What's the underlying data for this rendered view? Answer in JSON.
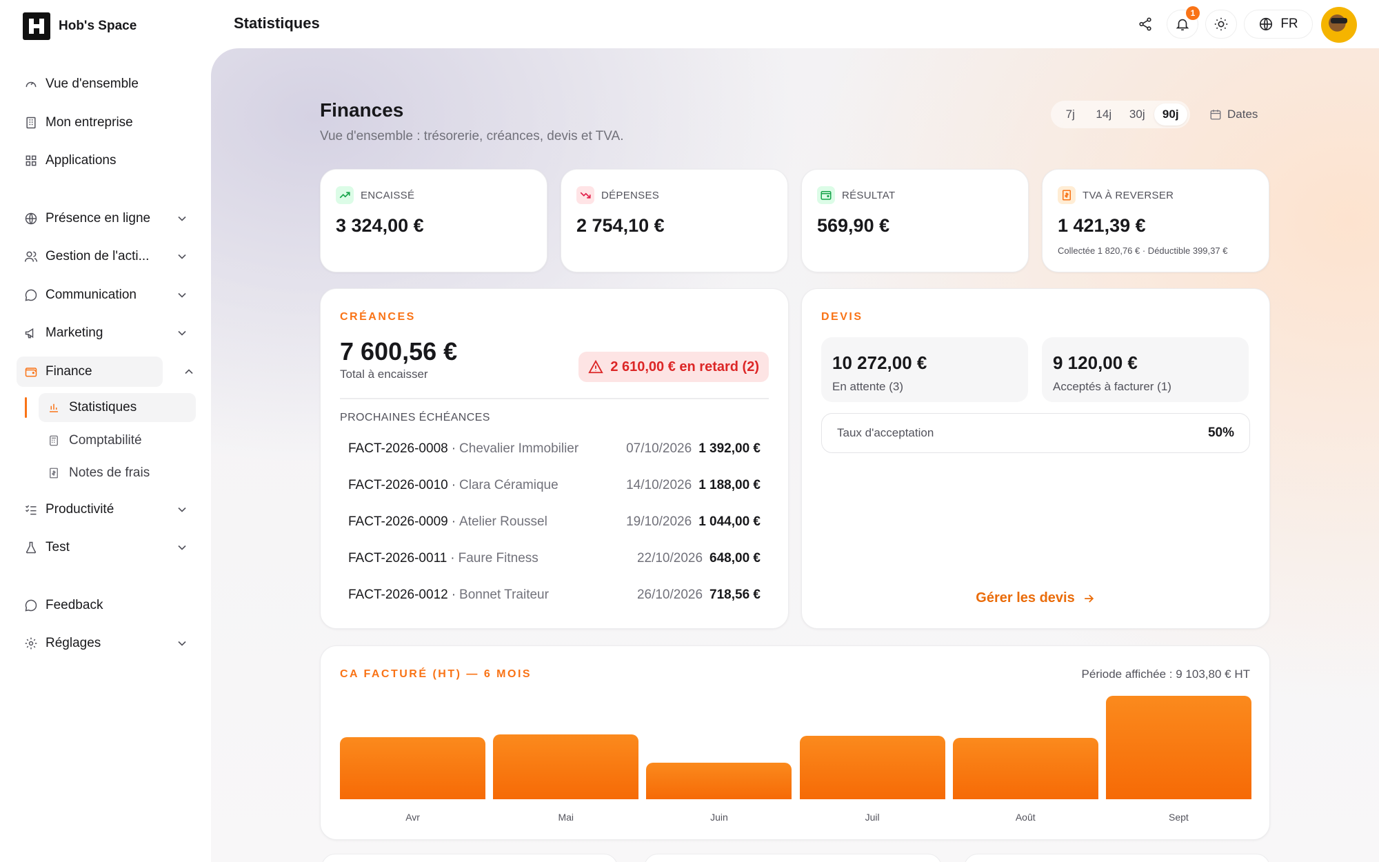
{
  "brand": {
    "name": "Hob's Space"
  },
  "page_title": "Statistiques",
  "nav": {
    "overview": "Vue d'ensemble",
    "company": "Mon entreprise",
    "apps": "Applications",
    "presence": "Présence en ligne",
    "gestion": "Gestion de l'acti...",
    "communication": "Communication",
    "marketing": "Marketing",
    "finance": "Finance",
    "finance_sub": [
      "Statistiques",
      "Comptabilité",
      "Notes de frais"
    ],
    "productivity": "Productivité",
    "test": "Test",
    "feedback": "Feedback",
    "settings": "Réglages"
  },
  "topbar": {
    "notifications_count": "1",
    "language": "FR"
  },
  "finances": {
    "title": "Finances",
    "subtitle": "Vue d'ensemble : trésorerie, créances, devis et TVA.",
    "periods": [
      "7j",
      "14j",
      "30j",
      "90j"
    ],
    "active_period": "90j",
    "dates_label": "Dates"
  },
  "kpis": [
    {
      "label": "ENCAISSÉ",
      "value": "3 324,00 €",
      "icon": "trend-up-icon",
      "color": "#16a34a"
    },
    {
      "label": "DÉPENSES",
      "value": "2 754,10 €",
      "icon": "trend-down-icon",
      "color": "#e11d48"
    },
    {
      "label": "RÉSULTAT",
      "value": "569,90 €",
      "icon": "wallet-icon",
      "color": "#16a34a"
    },
    {
      "label": "TVA À REVERSER",
      "value": "1 421,39 €",
      "note": "Collectée 1 820,76 € · Déductible 399,37 €",
      "icon": "receipt-icon",
      "color": "#f97316"
    }
  ],
  "creances": {
    "label": "CRÉANCES",
    "total": "7 600,56 €",
    "total_label": "Total à encaisser",
    "overdue": "2 610,00 € en retard (2)",
    "upcoming_label": "PROCHAINES ÉCHÉANCES",
    "rows": [
      {
        "id": "FACT-2026-0008",
        "client": "Chevalier Immobilier",
        "date": "07/10/2026",
        "amount": "1 392,00 €"
      },
      {
        "id": "FACT-2026-0010",
        "client": "Clara Céramique",
        "date": "14/10/2026",
        "amount": "1 188,00 €"
      },
      {
        "id": "FACT-2026-0009",
        "client": "Atelier Roussel",
        "date": "19/10/2026",
        "amount": "1 044,00 €"
      },
      {
        "id": "FACT-2026-0011",
        "client": "Faure Fitness",
        "date": "22/10/2026",
        "amount": "648,00 €"
      },
      {
        "id": "FACT-2026-0012",
        "client": "Bonnet Traiteur",
        "date": "26/10/2026",
        "amount": "718,56 €"
      }
    ]
  },
  "devis": {
    "label": "DEVIS",
    "pending_value": "10 272,00 €",
    "pending_label": "En attente (3)",
    "accepted_value": "9 120,00 €",
    "accepted_label": "Acceptés à facturer (1)",
    "rate_label": "Taux d'acceptation",
    "rate_value": "50%",
    "link": "Gérer les devis"
  },
  "chart_data": {
    "type": "bar",
    "title": "CA FACTURÉ (HT) — 6 MOIS",
    "subtitle": "Période affichée : 9 103,80 € HT",
    "categories": [
      "Avr",
      "Mai",
      "Juin",
      "Juil",
      "Août",
      "Sept"
    ],
    "values": [
      1450,
      1500,
      850,
      1470,
      1430,
      2403.8
    ],
    "ylim": [
      0,
      2403.8
    ],
    "grid": false,
    "color": "#f97316"
  }
}
